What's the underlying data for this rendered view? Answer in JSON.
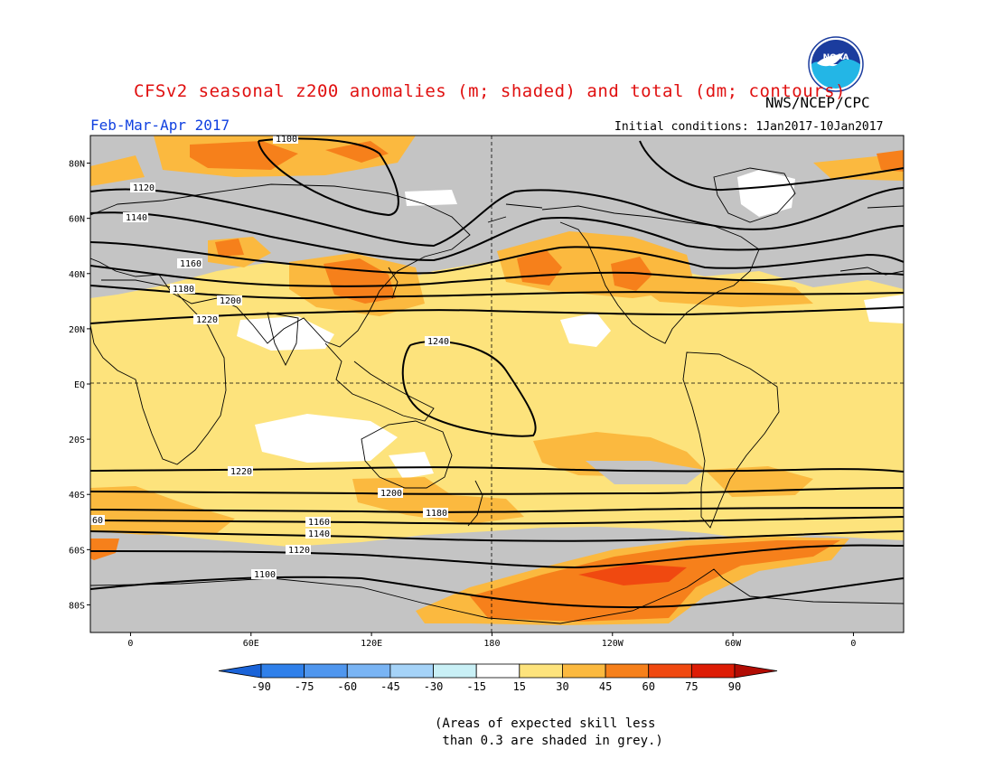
{
  "header": {
    "title": "CFSv2 seasonal z200 anomalies (m; shaded) and total (dm; contours)",
    "agency": "NWS/NCEP/CPC",
    "season": "Feb-Mar-Apr 2017",
    "initial_conditions": "Initial conditions: 1Jan2017-10Jan2017",
    "logo_text": "NOAA"
  },
  "map": {
    "lat_labels": [
      "80N",
      "60N",
      "40N",
      "20N",
      "EQ",
      "20S",
      "40S",
      "60S",
      "80S"
    ],
    "lat_values": [
      80,
      60,
      40,
      20,
      0,
      -20,
      -40,
      -60,
      -80
    ],
    "lon_labels": [
      "0",
      "60E",
      "120E",
      "180",
      "120W",
      "60W",
      "0"
    ],
    "lon_values": [
      0,
      60,
      120,
      180,
      240,
      300,
      360
    ],
    "lon_range": [
      -20,
      385
    ],
    "lat_range": [
      -90,
      90
    ],
    "contours": [
      {
        "label": "1100",
        "lat": 80
      },
      {
        "label": "1120",
        "lat": 65
      },
      {
        "label": "1140",
        "lat": 58
      },
      {
        "label": "1160",
        "lat": 44
      },
      {
        "label": "1180",
        "lat": 35
      },
      {
        "label": "1200",
        "lat": 29
      },
      {
        "label": "1220",
        "lat": 22
      },
      {
        "label": "1240",
        "lat": 10
      },
      {
        "label": "1220",
        "lat": -31
      },
      {
        "label": "1200",
        "lat": -40
      },
      {
        "label": "1180",
        "lat": -46
      },
      {
        "label": "1160",
        "lat": -50
      },
      {
        "label": "1140",
        "lat": -55
      },
      {
        "label": "1120",
        "lat": -62
      },
      {
        "label": "1100",
        "lat": -70
      },
      {
        "label": "60",
        "lat": -50
      }
    ],
    "colors": {
      "grey_low_skill": "#c4c4c4",
      "level_15_30": "#fde37c",
      "level_30_45": "#fbb93f",
      "level_45_60": "#f6801b",
      "level_60_75": "#f04910",
      "land_outline": "#000000"
    }
  },
  "colorbar": {
    "labels": [
      "-90",
      "-75",
      "-60",
      "-45",
      "-30",
      "-15",
      "15",
      "30",
      "45",
      "60",
      "75",
      "90"
    ],
    "colors": [
      "#1a63d8",
      "#2f80ea",
      "#4f96ee",
      "#79b4f4",
      "#a5d3f8",
      "#c9f0f6",
      "#ffffff",
      "#fde37c",
      "#fbb93f",
      "#f6801b",
      "#f04910",
      "#dd1c05",
      "#b20c04"
    ]
  },
  "footer": {
    "note_line1": "(Areas of expected skill less",
    "note_line2": " than 0.3 are shaded in grey.)"
  }
}
